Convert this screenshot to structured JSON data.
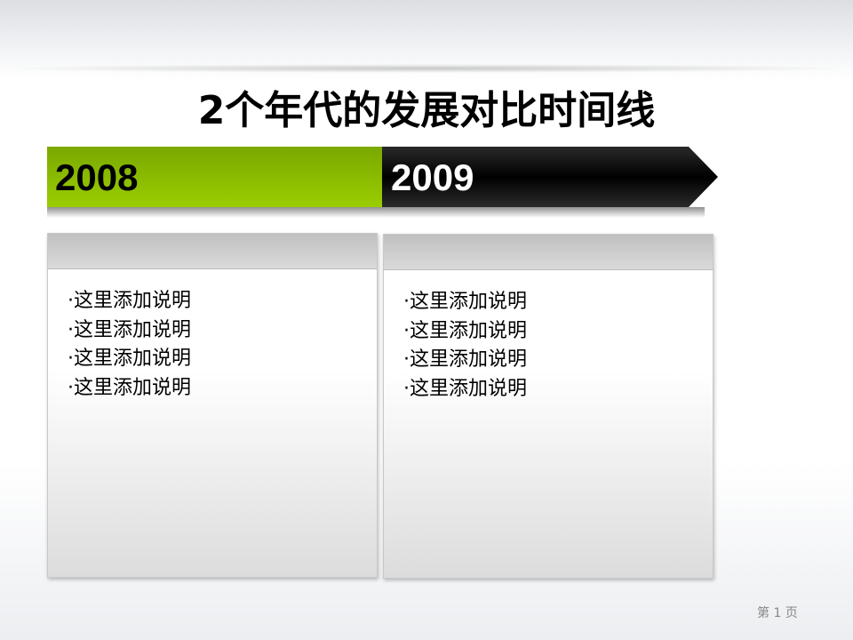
{
  "title": "2个年代的发展对比时间线",
  "timeline": [
    {
      "year": "2008",
      "color": "#8fc000",
      "items": [
        "这里添加说明",
        "这里添加说明",
        "这里添加说明",
        "这里添加说明"
      ]
    },
    {
      "year": "2009",
      "color": "#000000",
      "items": [
        "这里添加说明",
        "这里添加说明",
        "这里添加说明",
        "这里添加说明"
      ]
    }
  ],
  "footer": {
    "page": "第 1 页"
  }
}
